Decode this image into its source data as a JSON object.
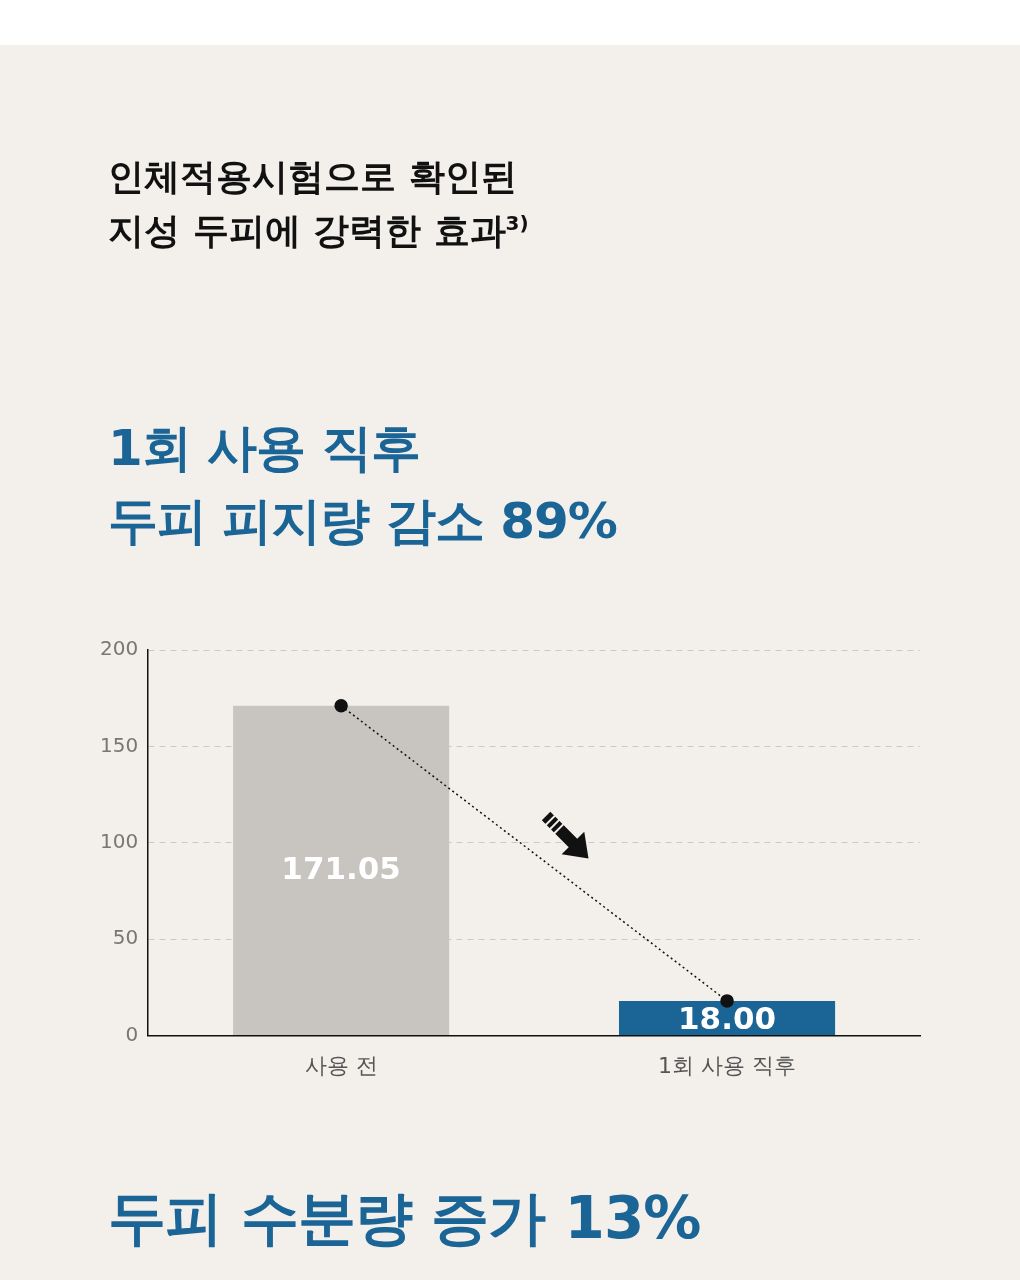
{
  "chart_data": {
    "type": "bar",
    "title": "인체적용시험으로 확인된\n지성 두피에 강력한 효과$^{3)}$",
    "subtitle": "1회 사용 직후\n두피 피지량 감소 89%",
    "annotations": [
      "두피 수분량 증가 13%"
    ],
    "categories": [
      "사용 전",
      "1회 사용 직후"
    ],
    "series": [
      {
        "colors": [
          "#c8c5c0",
          "#1a6496"
        ],
        "values": [
          171.05,
          18.0
        ],
        "value_labels": [
          "171.05",
          "18.00"
        ]
      },
      {
        "type": "line",
        "color": "#111111",
        "values": [
          171.05,
          18.0
        ],
        "line_style": "dotted",
        "marker": "circle"
      }
    ],
    "ylim": [
      0,
      200
    ],
    "yticks": [
      0,
      50,
      100,
      150,
      200
    ],
    "grid": "y"
  }
}
